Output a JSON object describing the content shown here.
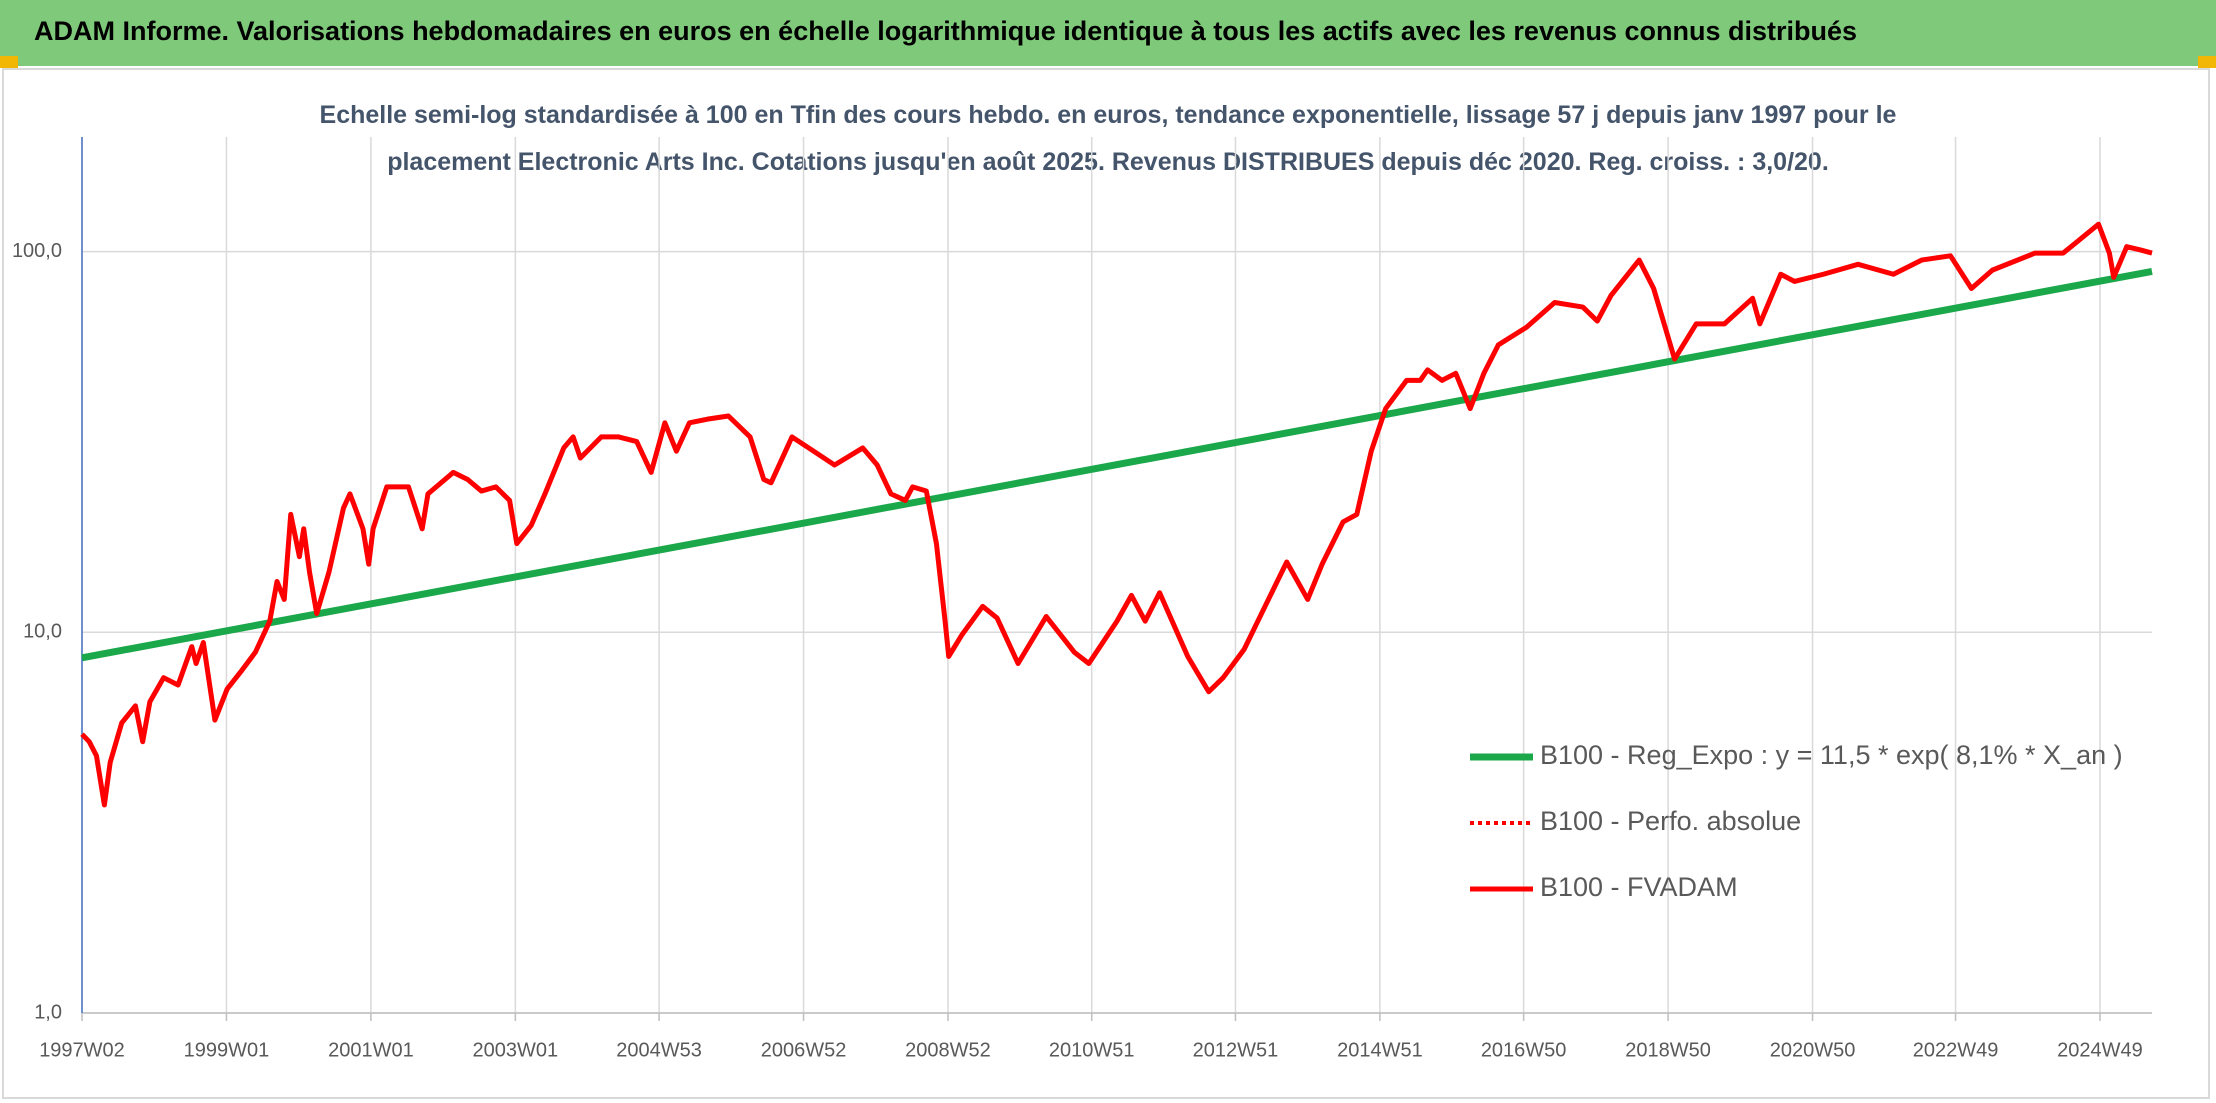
{
  "chart_data": {
    "type": "line",
    "title": "ADAM Informe. Valorisations hebdomadaires en euros en échelle logarithmique identique à tous les actifs avec les revenus connus distribués",
    "subtitle": "Echelle semi-log standardisée à 100 en Tfin des cours hebdo. en euros, tendance exponentielle, lissage 57 j depuis janv 1997 pour le placement Electronic Arts Inc. Cotations jusqu'en août 2025. Revenus DISTRIBUES depuis déc 2020. Reg. croiss. : 3,0/20.",
    "log_y": true,
    "grid": true,
    "legend": "center right",
    "xlim": [
      1997.0,
      2025.66
    ],
    "ylim": [
      1,
      200
    ],
    "yticks": [
      {
        "value": 1,
        "label": "1,0"
      },
      {
        "value": 10,
        "label": "10,0"
      },
      {
        "value": 100,
        "label": "100,0"
      }
    ],
    "xticks": [
      {
        "value": 1997.0,
        "label": "1997W02"
      },
      {
        "value": 1999.0,
        "label": "1999W01"
      },
      {
        "value": 2001.0,
        "label": "2001W01"
      },
      {
        "value": 2003.0,
        "label": "2003W01"
      },
      {
        "value": 2004.99,
        "label": "2004W53"
      },
      {
        "value": 2006.99,
        "label": "2006W52"
      },
      {
        "value": 2008.99,
        "label": "2008W52"
      },
      {
        "value": 2010.98,
        "label": "2010W51"
      },
      {
        "value": 2012.97,
        "label": "2012W51"
      },
      {
        "value": 2014.97,
        "label": "2014W51"
      },
      {
        "value": 2016.96,
        "label": "2016W50"
      },
      {
        "value": 2018.96,
        "label": "2018W50"
      },
      {
        "value": 2020.96,
        "label": "2020W50"
      },
      {
        "value": 2022.94,
        "label": "2022W49"
      },
      {
        "value": 2024.94,
        "label": "2024W49"
      }
    ],
    "series": [
      {
        "name": "B100 - Reg_Expo : y = 11,5 * exp( 8,1% *  X_an )",
        "color": "#1aa84b",
        "line_style": "solid",
        "x": [
          1997.0,
          2025.66
        ],
        "values": [
          8.57,
          88.7
        ]
      },
      {
        "name": "B100 - Perfo. absolue",
        "color": "#ff0000",
        "line_style": "dotted",
        "x": [],
        "values": []
      },
      {
        "name": "B100 - FVADAM",
        "color": "#ff0000",
        "line_style": "solid",
        "x": [
          1997.0,
          1997.1,
          1997.2,
          1997.31,
          1997.39,
          1997.55,
          1997.74,
          1997.84,
          1997.94,
          1998.13,
          1998.33,
          1998.52,
          1998.58,
          1998.68,
          1998.84,
          1999.01,
          1999.21,
          1999.4,
          1999.6,
          1999.7,
          1999.8,
          1999.89,
          2000.01,
          2000.07,
          2000.15,
          2000.25,
          2000.42,
          2000.62,
          2000.71,
          2000.89,
          2000.97,
          2001.03,
          2001.22,
          2001.52,
          2001.71,
          2001.79,
          2002.14,
          2002.34,
          2002.53,
          2002.73,
          2002.92,
          2003.02,
          2003.22,
          2003.41,
          2003.67,
          2003.8,
          2003.9,
          2004.19,
          2004.43,
          2004.68,
          2004.88,
          2005.07,
          2005.23,
          2005.41,
          2005.66,
          2005.95,
          2006.25,
          2006.44,
          2006.54,
          2006.83,
          2007.13,
          2007.42,
          2007.81,
          2008.01,
          2008.2,
          2008.4,
          2008.5,
          2008.69,
          2008.83,
          2008.95,
          2009.0,
          2009.18,
          2009.47,
          2009.67,
          2009.96,
          2010.35,
          2010.74,
          2010.94,
          2011.33,
          2011.53,
          2011.72,
          2011.92,
          2012.31,
          2012.6,
          2012.8,
          2013.09,
          2013.38,
          2013.68,
          2013.97,
          2014.17,
          2014.46,
          2014.65,
          2014.85,
          2015.05,
          2015.34,
          2015.53,
          2015.63,
          2015.83,
          2016.02,
          2016.22,
          2016.41,
          2016.61,
          2017.0,
          2017.39,
          2017.78,
          2017.98,
          2018.17,
          2018.56,
          2018.76,
          2019.05,
          2019.35,
          2019.74,
          2020.13,
          2020.23,
          2020.52,
          2020.71,
          2021.11,
          2021.59,
          2022.08,
          2022.47,
          2022.87,
          2023.16,
          2023.45,
          2024.04,
          2024.43,
          2024.62,
          2024.92,
          2025.07,
          2025.13,
          2025.31,
          2025.5,
          2025.66
        ],
        "values": [
          5.4,
          5.16,
          4.74,
          3.52,
          4.55,
          5.78,
          6.41,
          5.16,
          6.57,
          7.6,
          7.27,
          9.17,
          8.28,
          9.4,
          5.88,
          7.1,
          7.93,
          8.86,
          10.7,
          13.6,
          12.2,
          20.4,
          15.8,
          18.7,
          14.4,
          11.2,
          14.4,
          21.2,
          23.1,
          18.7,
          15.1,
          18.7,
          24.1,
          24.1,
          18.7,
          23.1,
          26.3,
          25.2,
          23.5,
          24.1,
          22.2,
          17.1,
          19.1,
          23.1,
          30.5,
          32.6,
          28.7,
          32.6,
          32.6,
          31.7,
          26.3,
          35.5,
          29.9,
          35.5,
          36.3,
          37.0,
          32.6,
          25.2,
          24.7,
          32.6,
          29.9,
          27.5,
          30.5,
          27.5,
          23.1,
          22.2,
          24.1,
          23.5,
          17.1,
          10.7,
          8.64,
          9.83,
          11.7,
          10.9,
          8.28,
          11.0,
          8.86,
          8.28,
          10.7,
          12.5,
          10.7,
          12.7,
          8.64,
          6.98,
          7.6,
          9.02,
          11.7,
          15.3,
          12.2,
          15.1,
          19.5,
          20.4,
          29.9,
          38.7,
          45.9,
          45.9,
          48.9,
          45.9,
          47.9,
          38.7,
          47.9,
          56.9,
          63.3,
          73.5,
          71.5,
          65.7,
          76.7,
          95.0,
          80.0,
          52.2,
          64.6,
          64.6,
          75.4,
          64.6,
          87.2,
          83.5,
          87.2,
          92.6,
          87.2,
          95.0,
          97.5,
          80.0,
          89.4,
          99.1,
          99.1,
          106,
          118,
          99.1,
          85.6,
          103,
          101,
          99.1
        ]
      }
    ]
  }
}
